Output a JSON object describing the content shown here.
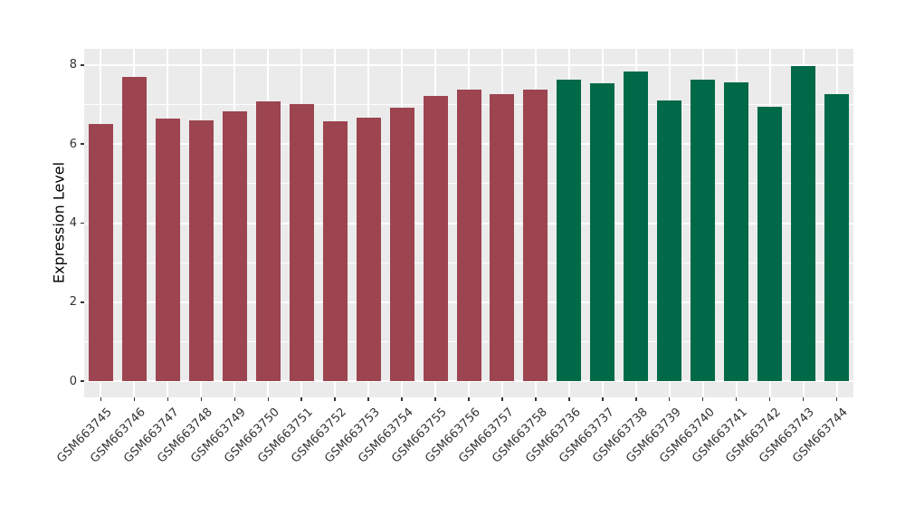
{
  "chart_data": {
    "type": "bar",
    "title": "",
    "xlabel": "",
    "ylabel": "Expression Level",
    "categories": [
      "GSM663745",
      "GSM663746",
      "GSM663747",
      "GSM663748",
      "GSM663749",
      "GSM663750",
      "GSM663751",
      "GSM663752",
      "GSM663753",
      "GSM663754",
      "GSM663755",
      "GSM663756",
      "GSM663757",
      "GSM663758",
      "GSM663736",
      "GSM663737",
      "GSM663738",
      "GSM663739",
      "GSM663740",
      "GSM663741",
      "GSM663742",
      "GSM663743",
      "GSM663744"
    ],
    "values": [
      6.52,
      7.7,
      6.64,
      6.61,
      6.83,
      7.09,
      7.01,
      6.58,
      6.68,
      6.91,
      7.22,
      7.39,
      7.26,
      7.39,
      7.62,
      7.54,
      7.83,
      7.1,
      7.62,
      7.56,
      6.94,
      7.98,
      7.26
    ],
    "color_groups": [
      {
        "name": "group-GSM663745-to-GSM663758",
        "color": "#9C4450",
        "count": 14
      },
      {
        "name": "group-GSM663736-to-GSM663744",
        "color": "#006948",
        "count": 9
      }
    ],
    "ylim": [
      -0.41,
      8.41
    ],
    "yticks": [
      0,
      2,
      4,
      6,
      8
    ],
    "yticks_minor": [
      1,
      3,
      5,
      7
    ],
    "x_tick_angle_deg": 45,
    "grid": "white major+minor on gray panel, vertical line per category",
    "legend_position": "none",
    "panel_bg": "#EBEBEB",
    "grid_color": "#FFFFFF",
    "axis_text_color": "#333333",
    "axis_title_color": "#000000",
    "tick_mark_color": "#333333",
    "figure_bg": "#FFFFFF"
  }
}
